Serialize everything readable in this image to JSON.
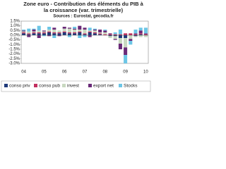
{
  "chart_data": {
    "type": "stacked_bar",
    "title": "Zone euro - Contribution des éléments du PIB à",
    "title_line2": "la croissance (var. trimestrielle)",
    "subtitle": "Sources : Eurostat, gecodia.fr",
    "categories": [
      "04",
      null,
      null,
      null,
      "05",
      null,
      null,
      null,
      "06",
      null,
      null,
      null,
      "07",
      null,
      null,
      null,
      "08",
      null,
      null,
      null,
      "09",
      null,
      null,
      null,
      "10"
    ],
    "series": [
      {
        "name": "conso priv",
        "color": "#1f3a7a",
        "values": [
          0.2,
          0.1,
          0.2,
          0.2,
          0.2,
          0.3,
          0.2,
          0.2,
          0.3,
          0.2,
          0.2,
          0.3,
          0.1,
          0.3,
          0.2,
          0.1,
          0.0,
          -0.1,
          -0.1,
          -0.3,
          -0.3,
          0.0,
          -0.1,
          0.1,
          0.0
        ]
      },
      {
        "name": "conso pub",
        "color": "#c2305f",
        "values": [
          0.1,
          0.1,
          0.1,
          0.1,
          0.1,
          0.1,
          0.1,
          0.1,
          0.1,
          0.1,
          0.1,
          0.1,
          0.1,
          0.1,
          0.1,
          0.1,
          0.1,
          0.1,
          0.1,
          0.1,
          0.2,
          0.2,
          0.1,
          0.1,
          0.1
        ]
      },
      {
        "name": "invest",
        "color": "#c8d8c0",
        "values": [
          0.1,
          0.2,
          0.1,
          0.2,
          0.1,
          0.2,
          0.3,
          0.2,
          0.3,
          0.4,
          0.3,
          0.2,
          0.4,
          0.1,
          0.2,
          0.1,
          0.2,
          -0.2,
          -0.3,
          -0.6,
          -1.0,
          -0.4,
          -0.1,
          -0.2,
          -0.2
        ]
      },
      {
        "name": "export net",
        "color": "#6a2a78",
        "values": [
          0.1,
          -0.2,
          0.2,
          -0.3,
          0.1,
          -0.1,
          0.2,
          -0.1,
          0.2,
          0.1,
          0.1,
          0.4,
          0.2,
          -0.2,
          0.1,
          0.3,
          0.2,
          0.1,
          -0.1,
          -0.6,
          -0.8,
          -0.2,
          0.1,
          0.3,
          0.1
        ]
      },
      {
        "name": "Stocks",
        "color": "#6cc6e6",
        "values": [
          0.1,
          0.3,
          0.1,
          0.5,
          -0.1,
          0.3,
          -0.3,
          0.0,
          0.0,
          -0.2,
          0.2,
          -0.3,
          -0.2,
          0.3,
          0.1,
          0.0,
          0.1,
          0.0,
          0.2,
          0.5,
          -0.9,
          -0.4,
          0.4,
          0.3,
          0.6
        ]
      }
    ],
    "ylim": [
      -3.0,
      1.5
    ],
    "yticks": [
      {
        "value": 1.5,
        "label": "1.5%"
      },
      {
        "value": 1.0,
        "label": "1.0%"
      },
      {
        "value": 0.5,
        "label": "0.5%"
      },
      {
        "value": 0.0,
        "label": "0.0%"
      },
      {
        "value": -0.5,
        "label": "-0.5%"
      },
      {
        "value": -1.0,
        "label": "-1.0%"
      },
      {
        "value": -1.5,
        "label": "-1.5%"
      },
      {
        "value": -2.0,
        "label": "-2.0%"
      },
      {
        "value": -2.5,
        "label": "-2.5%"
      },
      {
        "value": -3.0,
        "label": "-3.0%"
      }
    ],
    "grid": false
  }
}
